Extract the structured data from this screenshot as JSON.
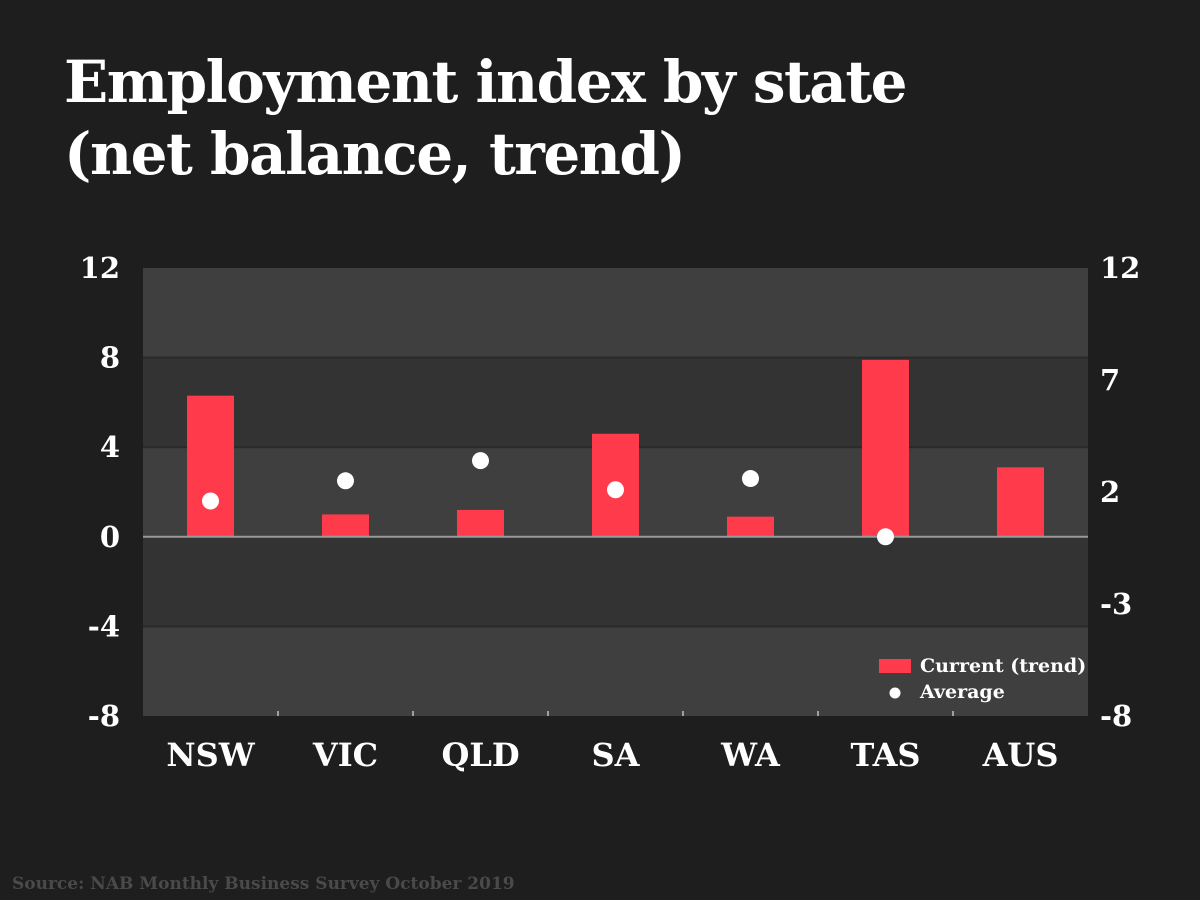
{
  "chart_data": {
    "type": "bar",
    "title": "Employment index by state\n(net balance, trend)",
    "categories": [
      "NSW",
      "VIC",
      "QLD",
      "SA",
      "WA",
      "TAS",
      "AUS"
    ],
    "series": [
      {
        "name": "Current (trend)",
        "kind": "bar",
        "color": "#ff3a4b",
        "values": [
          6.3,
          1.0,
          1.2,
          4.6,
          0.9,
          7.9,
          3.1
        ]
      },
      {
        "name": "Average",
        "kind": "dot",
        "color": "#ffffff",
        "values": [
          1.6,
          2.5,
          3.4,
          2.1,
          2.6,
          0.0,
          null
        ]
      }
    ],
    "ylim": [
      -8,
      12
    ],
    "y_ticks_left": [
      "12",
      "8",
      "4",
      "0",
      "-4",
      "-8"
    ],
    "y_ticks_right": [
      "12",
      "7",
      "2",
      "-3",
      "-8"
    ],
    "grid": true,
    "legend": "bottom-right",
    "colors": {
      "background": "#1e1e1e",
      "band_light": "#3f3f3f",
      "band_dark": "#333333",
      "bar": "#ff3a4b"
    }
  },
  "source": "Source: NAB Monthly Business Survey October 2019"
}
